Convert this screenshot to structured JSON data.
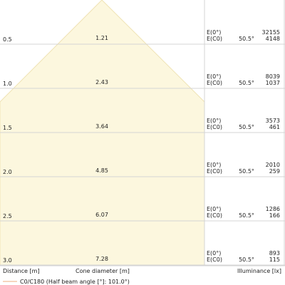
{
  "chart_data": {
    "type": "table",
    "rows": [
      {
        "distance": "0.5",
        "diameter": "1.21",
        "angle": "50.5°",
        "e0": "32155",
        "ec0": "4148"
      },
      {
        "distance": "1.0",
        "diameter": "2.43",
        "angle": "50.5°",
        "e0": "8039",
        "ec0": "1037"
      },
      {
        "distance": "1.5",
        "diameter": "3.64",
        "angle": "50.5°",
        "e0": "3573",
        "ec0": "461"
      },
      {
        "distance": "2.0",
        "diameter": "4.85",
        "angle": "50.5°",
        "e0": "2010",
        "ec0": "259"
      },
      {
        "distance": "2.5",
        "diameter": "6.07",
        "angle": "50.5°",
        "e0": "1286",
        "ec0": "166"
      },
      {
        "distance": "3.0",
        "diameter": "7.28",
        "angle": "50.5°",
        "e0": "893",
        "ec0": "115"
      }
    ],
    "e0_label": "E(0°)",
    "ec0_label": "E(C0)",
    "xlabel_distance": "Distance [m]",
    "xlabel_diameter": "Cone diameter [m]",
    "xlabel_illuminance": "Illuminance [lx]",
    "legend": "C0/C180 (Half beam angle [°]: 101.0°)",
    "colors": {
      "cone_fill": "#fcf7de",
      "cone_edge": "#efe3b4",
      "grid": "#d4d4d4",
      "legend_line": "#f3c9a8"
    }
  }
}
